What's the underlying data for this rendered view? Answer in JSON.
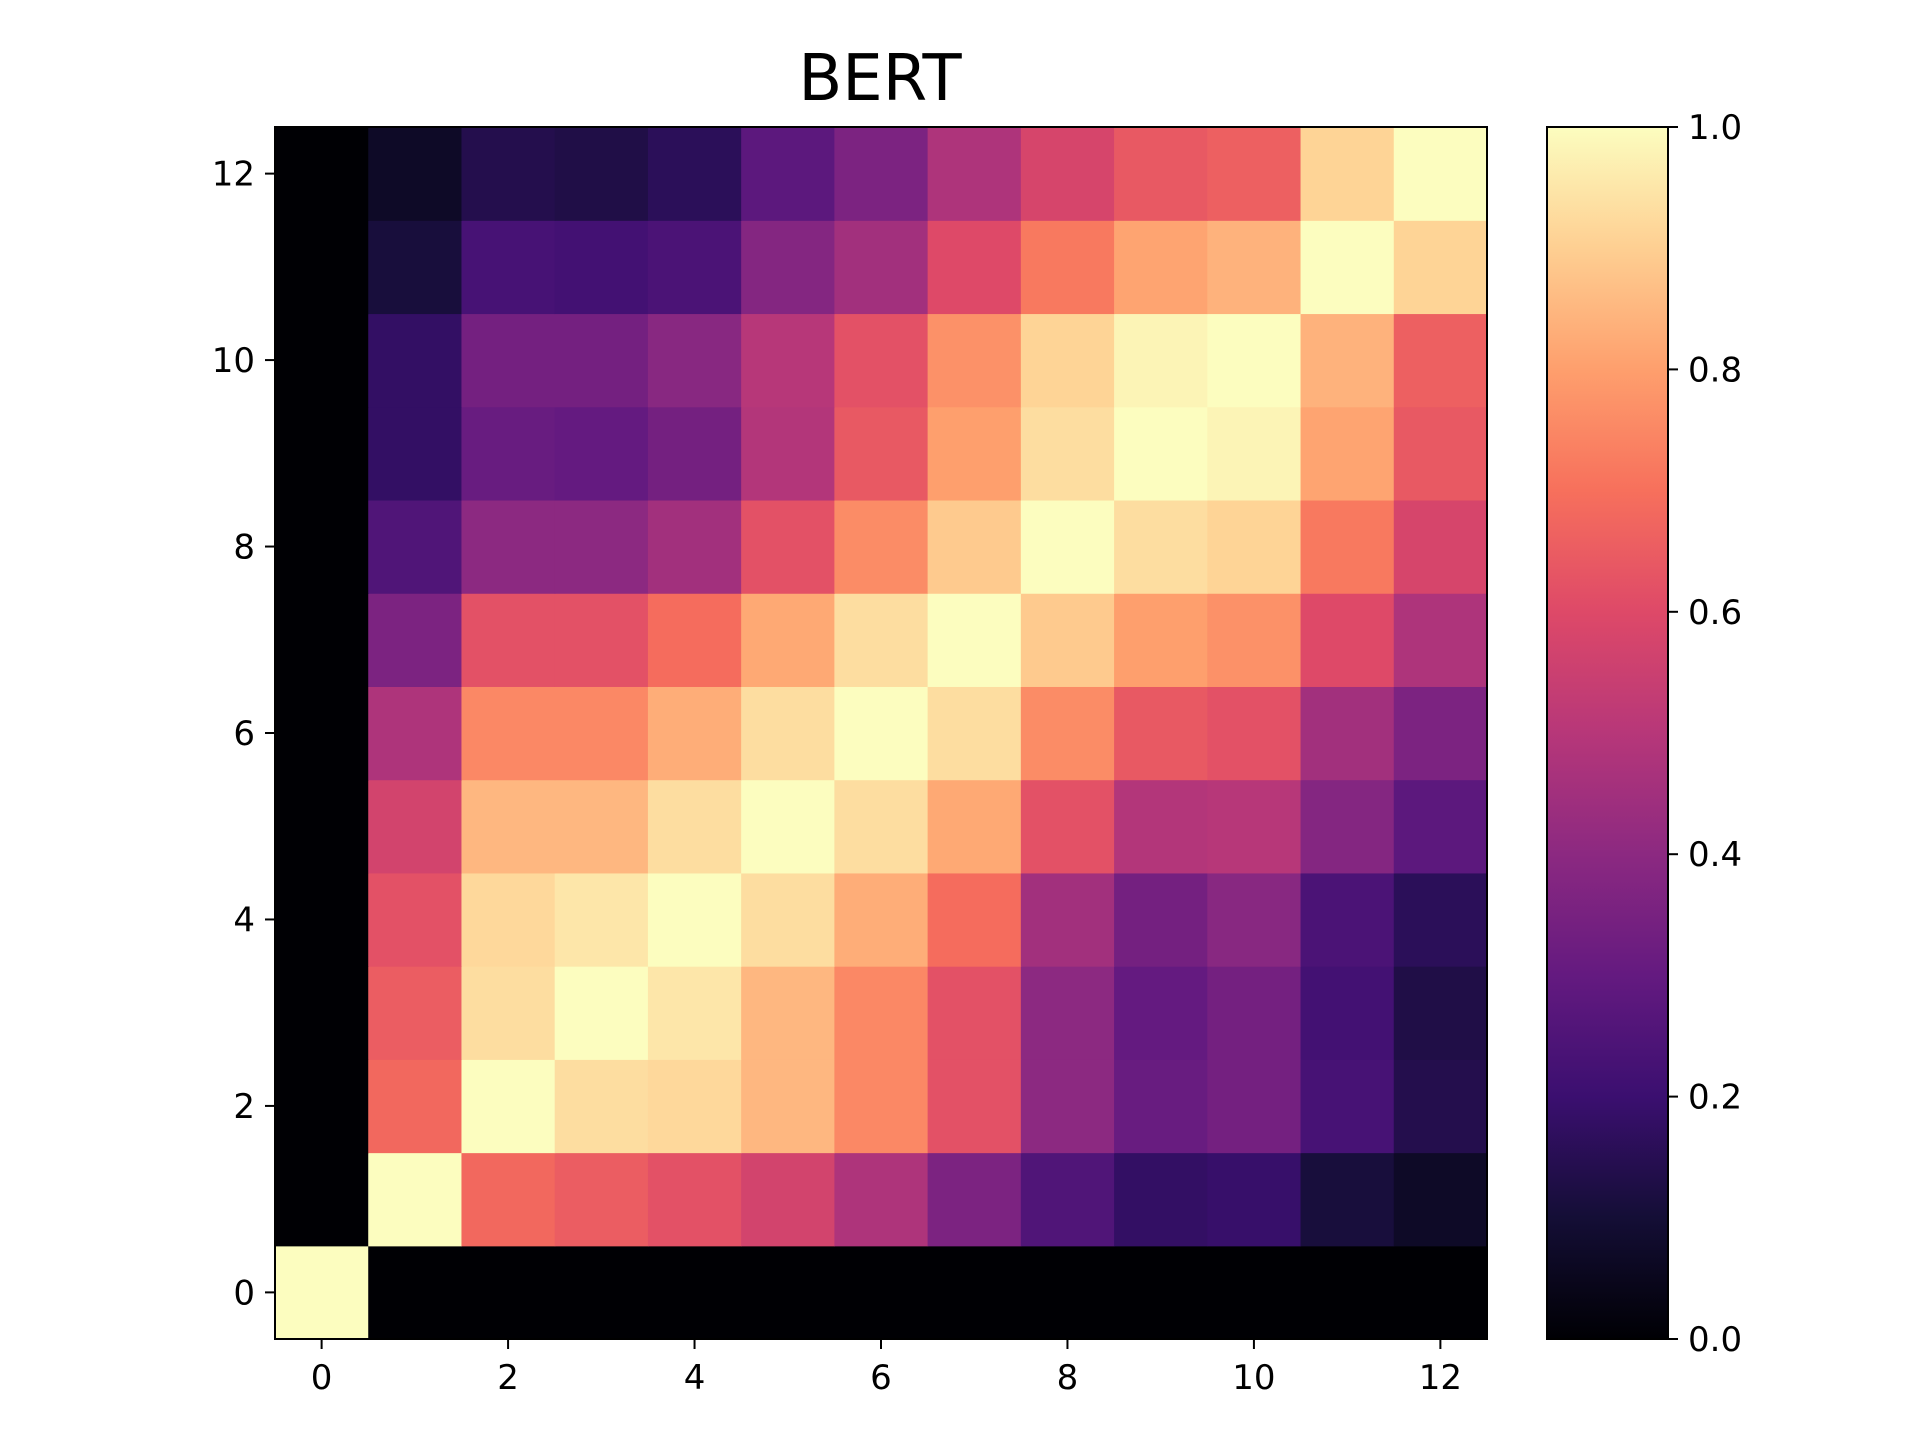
{
  "chart_data": {
    "type": "heatmap",
    "title": "BERT",
    "xlabel": "",
    "ylabel": "",
    "x": [
      0,
      1,
      2,
      3,
      4,
      5,
      6,
      7,
      8,
      9,
      10,
      11,
      12
    ],
    "y": [
      0,
      1,
      2,
      3,
      4,
      5,
      6,
      7,
      8,
      9,
      10,
      11,
      12
    ],
    "xlim": [
      -0.5,
      12.5
    ],
    "ylim": [
      -0.5,
      12.5
    ],
    "x_ticks": [
      "0",
      "2",
      "4",
      "6",
      "8",
      "10",
      "12"
    ],
    "y_ticks": [
      "0",
      "2",
      "4",
      "6",
      "8",
      "10",
      "12"
    ],
    "grid": false,
    "colormap": "magma",
    "colorbar": {
      "range": [
        0.0,
        1.0
      ],
      "ticks": [
        "0.0",
        "0.2",
        "0.4",
        "0.6",
        "0.8",
        "1.0"
      ]
    },
    "values": [
      [
        1.0,
        0.0,
        0.0,
        0.0,
        0.0,
        0.0,
        0.0,
        0.0,
        0.0,
        0.0,
        0.0,
        0.0,
        0.0
      ],
      [
        0.0,
        1.0,
        0.68,
        0.65,
        0.62,
        0.57,
        0.48,
        0.36,
        0.25,
        0.18,
        0.19,
        0.11,
        0.07
      ],
      [
        0.0,
        0.68,
        1.0,
        0.93,
        0.92,
        0.85,
        0.75,
        0.62,
        0.4,
        0.31,
        0.34,
        0.23,
        0.14
      ],
      [
        0.0,
        0.65,
        0.93,
        1.0,
        0.95,
        0.85,
        0.75,
        0.62,
        0.4,
        0.3,
        0.34,
        0.22,
        0.13
      ],
      [
        0.0,
        0.62,
        0.92,
        0.95,
        1.0,
        0.93,
        0.83,
        0.69,
        0.45,
        0.34,
        0.39,
        0.24,
        0.16
      ],
      [
        0.0,
        0.57,
        0.85,
        0.85,
        0.93,
        1.0,
        0.93,
        0.82,
        0.62,
        0.49,
        0.5,
        0.38,
        0.28
      ],
      [
        0.0,
        0.48,
        0.75,
        0.75,
        0.83,
        0.93,
        1.0,
        0.93,
        0.76,
        0.64,
        0.62,
        0.45,
        0.36
      ],
      [
        0.0,
        0.36,
        0.62,
        0.62,
        0.69,
        0.82,
        0.93,
        1.0,
        0.89,
        0.8,
        0.77,
        0.6,
        0.48
      ],
      [
        0.0,
        0.25,
        0.4,
        0.4,
        0.45,
        0.62,
        0.76,
        0.89,
        1.0,
        0.93,
        0.91,
        0.72,
        0.58
      ],
      [
        0.0,
        0.18,
        0.31,
        0.3,
        0.34,
        0.49,
        0.64,
        0.8,
        0.93,
        1.0,
        0.98,
        0.81,
        0.64
      ],
      [
        0.0,
        0.18,
        0.34,
        0.34,
        0.39,
        0.5,
        0.62,
        0.77,
        0.91,
        0.98,
        1.0,
        0.84,
        0.66
      ],
      [
        0.0,
        0.11,
        0.23,
        0.22,
        0.24,
        0.38,
        0.45,
        0.6,
        0.72,
        0.81,
        0.84,
        1.0,
        0.91
      ],
      [
        0.0,
        0.07,
        0.14,
        0.13,
        0.16,
        0.28,
        0.36,
        0.48,
        0.58,
        0.64,
        0.66,
        0.91,
        1.0
      ]
    ]
  }
}
